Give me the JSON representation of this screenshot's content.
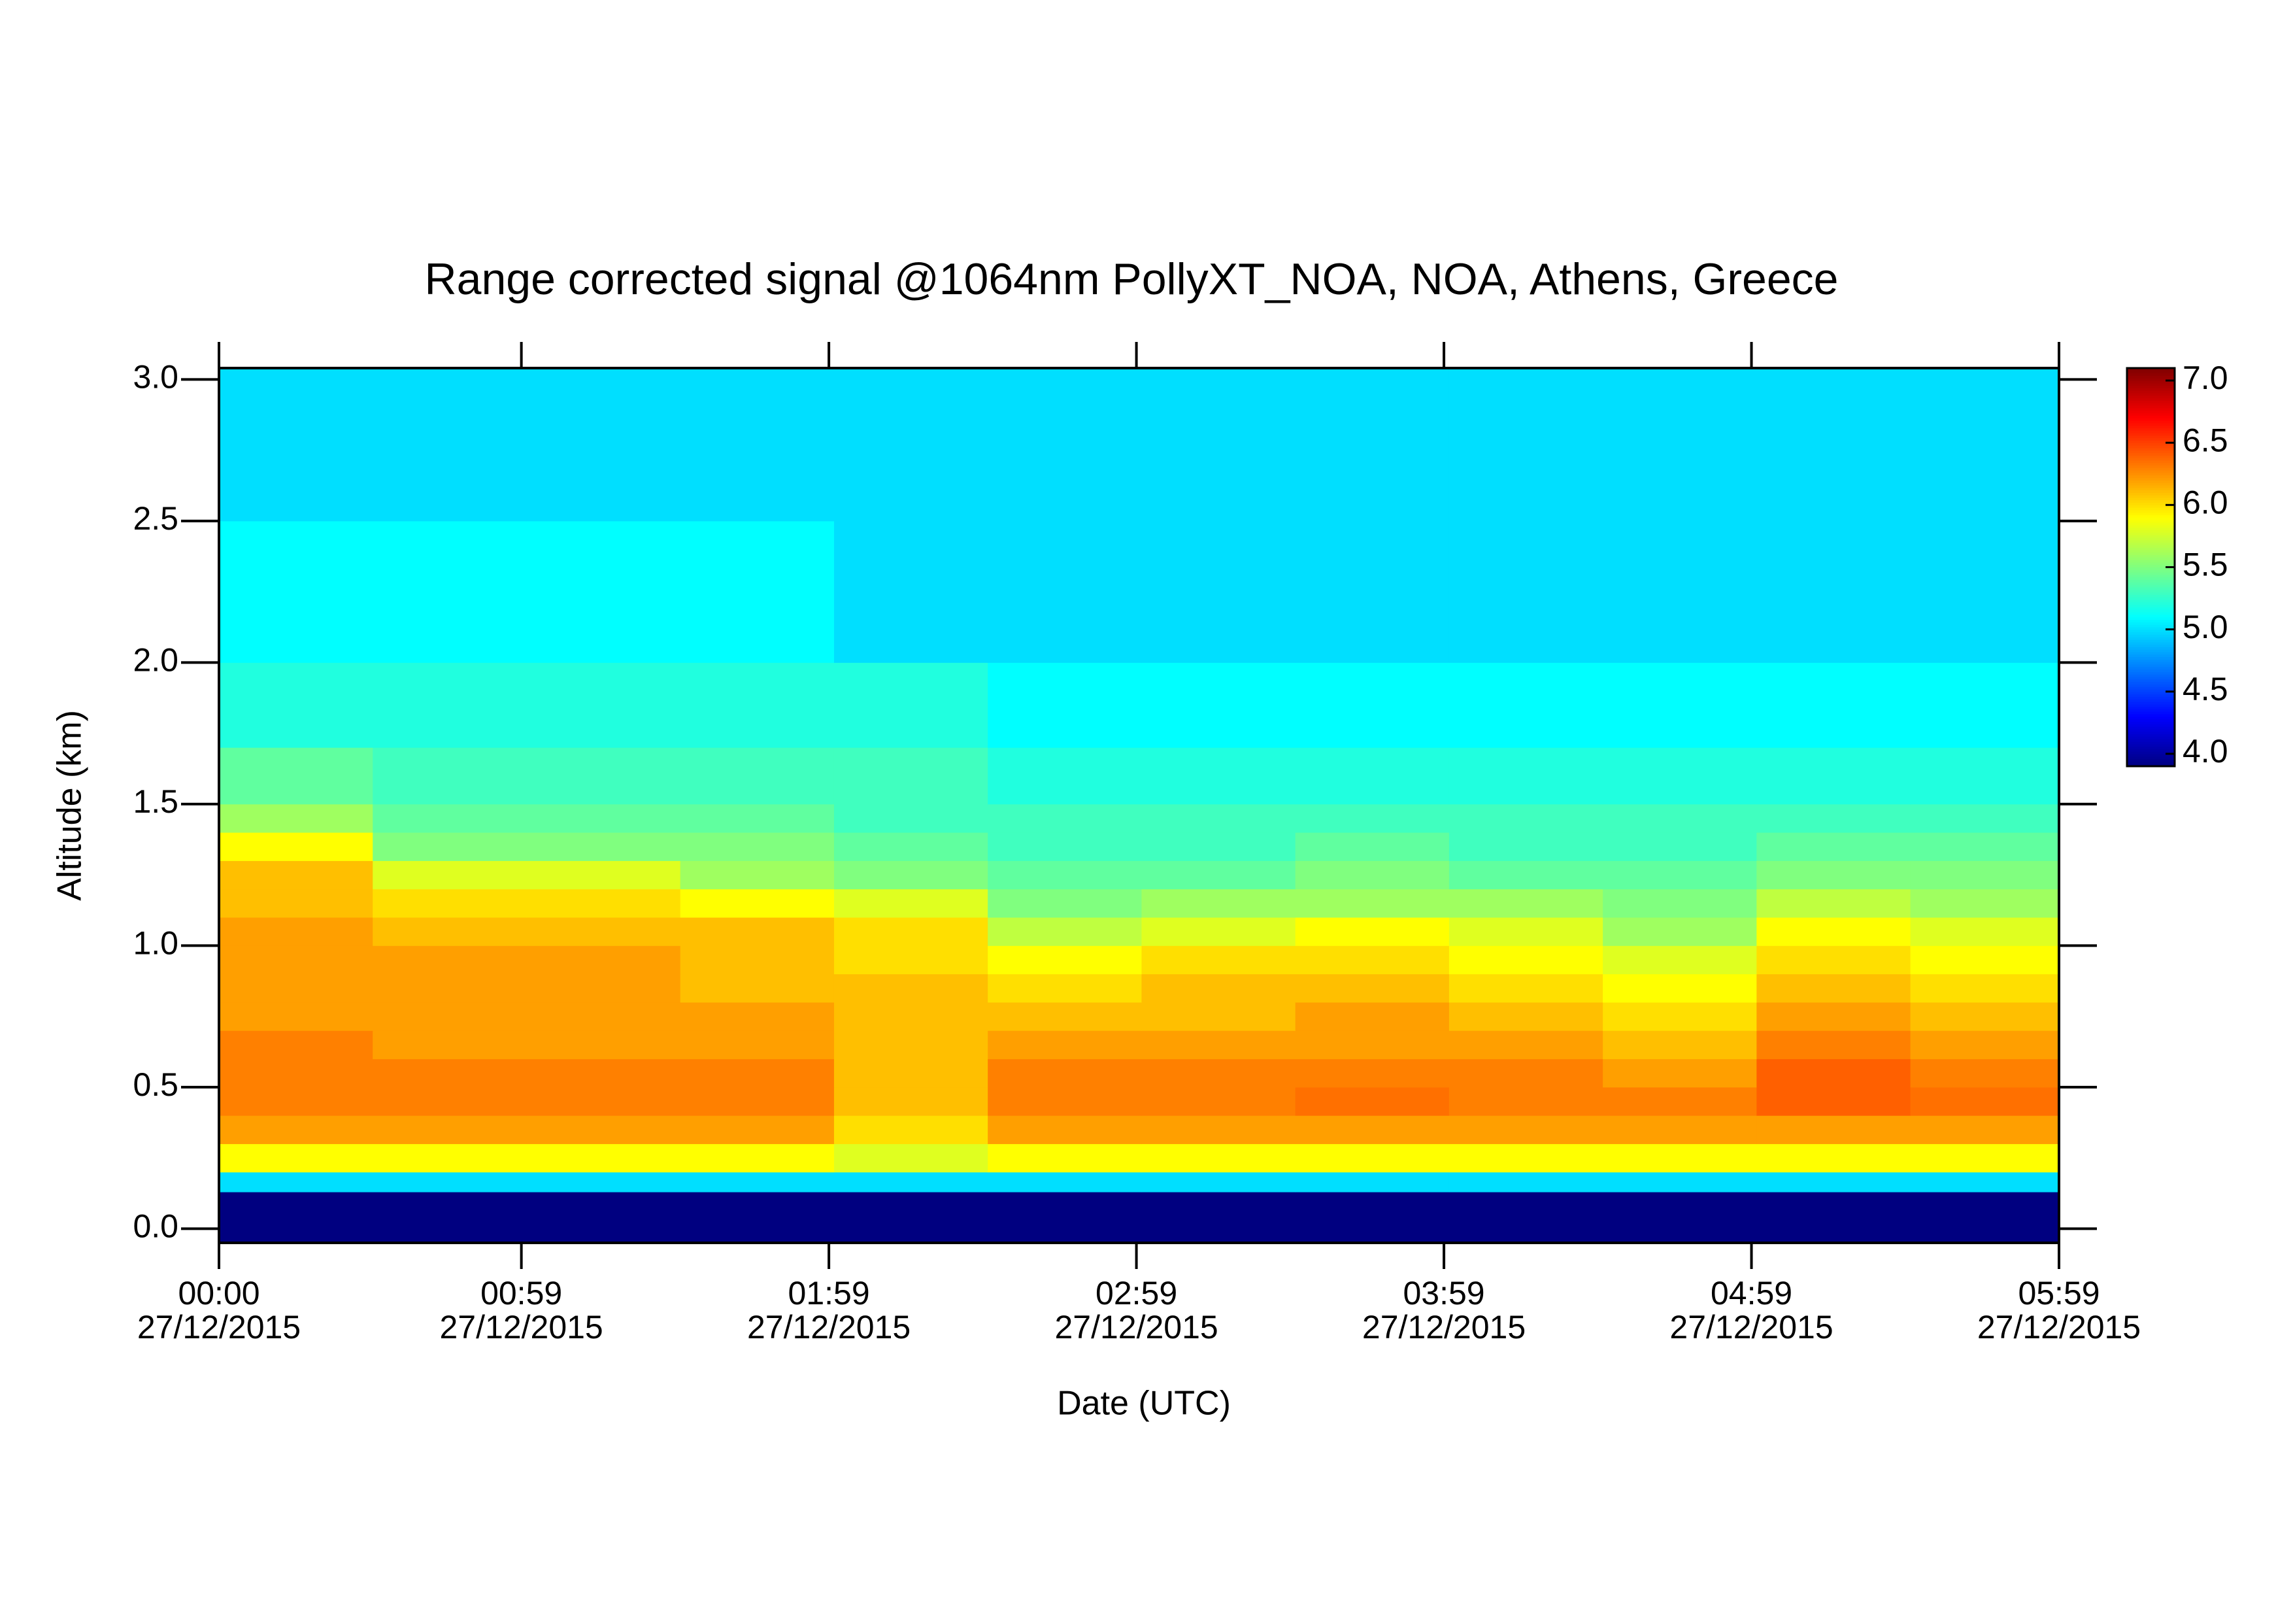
{
  "chart_data": {
    "type": "heatmap",
    "title": "Range corrected signal @1064nm  PollyXT_NOA, NOA, Athens, Greece",
    "x_label": "Date (UTC)",
    "y_label": "Altitude (km)",
    "colormap": "jet",
    "x": [
      0,
      30,
      60,
      90,
      120,
      150,
      180,
      210,
      240,
      270,
      300,
      330,
      359
    ],
    "y": [
      -0.05,
      0.13,
      0.2,
      0.3,
      0.4,
      0.5,
      0.6,
      0.7,
      0.8,
      0.9,
      1.0,
      1.1,
      1.2,
      1.3,
      1.4,
      1.5,
      1.7,
      2.0,
      2.5,
      3.04
    ],
    "z": [
      [
        3.9,
        3.9,
        3.9,
        3.9,
        3.9,
        3.9,
        3.9,
        3.9,
        3.9,
        3.9,
        3.9,
        3.9
      ],
      [
        5.0,
        5.0,
        5.0,
        5.0,
        5.0,
        5.0,
        5.0,
        5.0,
        5.0,
        5.0,
        5.0,
        5.0
      ],
      [
        5.9,
        5.9,
        5.9,
        5.9,
        5.8,
        5.9,
        5.9,
        5.9,
        5.9,
        5.9,
        5.9,
        5.9
      ],
      [
        6.2,
        6.2,
        6.2,
        6.2,
        6.0,
        6.2,
        6.2,
        6.2,
        6.2,
        6.2,
        6.2,
        6.2
      ],
      [
        6.3,
        6.3,
        6.3,
        6.3,
        6.1,
        6.3,
        6.3,
        6.35,
        6.3,
        6.3,
        6.4,
        6.35
      ],
      [
        6.3,
        6.3,
        6.3,
        6.3,
        6.1,
        6.3,
        6.3,
        6.3,
        6.3,
        6.2,
        6.4,
        6.3
      ],
      [
        6.3,
        6.2,
        6.2,
        6.2,
        6.1,
        6.2,
        6.2,
        6.2,
        6.2,
        6.1,
        6.3,
        6.2
      ],
      [
        6.2,
        6.2,
        6.2,
        6.2,
        6.1,
        6.1,
        6.1,
        6.2,
        6.1,
        6.0,
        6.2,
        6.1
      ],
      [
        6.2,
        6.2,
        6.2,
        6.1,
        6.1,
        6.0,
        6.1,
        6.1,
        6.0,
        5.9,
        6.1,
        6.0
      ],
      [
        6.2,
        6.2,
        6.2,
        6.1,
        6.0,
        5.9,
        6.0,
        6.0,
        5.9,
        5.8,
        6.0,
        5.9
      ],
      [
        6.2,
        6.1,
        6.1,
        6.1,
        6.0,
        5.7,
        5.8,
        5.9,
        5.8,
        5.6,
        5.9,
        5.8
      ],
      [
        6.1,
        6.0,
        6.0,
        5.9,
        5.8,
        5.5,
        5.6,
        5.6,
        5.6,
        5.5,
        5.7,
        5.6
      ],
      [
        6.1,
        5.8,
        5.8,
        5.6,
        5.5,
        5.4,
        5.4,
        5.5,
        5.4,
        5.4,
        5.5,
        5.5
      ],
      [
        5.9,
        5.5,
        5.5,
        5.5,
        5.4,
        5.3,
        5.3,
        5.4,
        5.3,
        5.3,
        5.4,
        5.4
      ],
      [
        5.6,
        5.4,
        5.4,
        5.4,
        5.3,
        5.3,
        5.3,
        5.3,
        5.3,
        5.3,
        5.3,
        5.3
      ],
      [
        5.4,
        5.3,
        5.3,
        5.3,
        5.3,
        5.2,
        5.2,
        5.2,
        5.2,
        5.2,
        5.2,
        5.2
      ],
      [
        5.2,
        5.2,
        5.2,
        5.2,
        5.2,
        5.1,
        5.1,
        5.1,
        5.1,
        5.1,
        5.1,
        5.1
      ],
      [
        5.1,
        5.1,
        5.1,
        5.1,
        5.0,
        5.0,
        5.0,
        5.0,
        5.0,
        5.0,
        5.0,
        5.0
      ],
      [
        5.0,
        5.0,
        5.0,
        5.0,
        5.0,
        5.0,
        5.0,
        5.0,
        5.0,
        5.0,
        5.0,
        5.0
      ]
    ],
    "xlim": [
      0,
      359
    ],
    "xticks": [
      {
        "value": 0,
        "label": [
          "00:00",
          "27/12/2015"
        ]
      },
      {
        "value": 59,
        "label": [
          "00:59",
          "27/12/2015"
        ]
      },
      {
        "value": 119,
        "label": [
          "01:59",
          "27/12/2015"
        ]
      },
      {
        "value": 179,
        "label": [
          "02:59",
          "27/12/2015"
        ]
      },
      {
        "value": 239,
        "label": [
          "03:59",
          "27/12/2015"
        ]
      },
      {
        "value": 299,
        "label": [
          "04:59",
          "27/12/2015"
        ]
      },
      {
        "value": 359,
        "label": [
          "05:59",
          "27/12/2015"
        ]
      }
    ],
    "ylim": [
      -0.05,
      3.04
    ],
    "yticks": [
      {
        "value": 0,
        "label": "0.0"
      },
      0.5,
      {
        "value": 1,
        "label": "1.0"
      },
      1.5,
      {
        "value": 2,
        "label": "2.0"
      },
      2.5,
      {
        "value": 3,
        "label": "3.0"
      }
    ],
    "clim": [
      3.9,
      7.1
    ],
    "cticks": [
      {
        "value": 4,
        "label": "4.0"
      },
      4.5,
      {
        "value": 5,
        "label": "5.0"
      },
      5.5,
      {
        "value": 6,
        "label": "6.0"
      },
      6.5,
      {
        "value": 7,
        "label": "7.0"
      }
    ]
  }
}
